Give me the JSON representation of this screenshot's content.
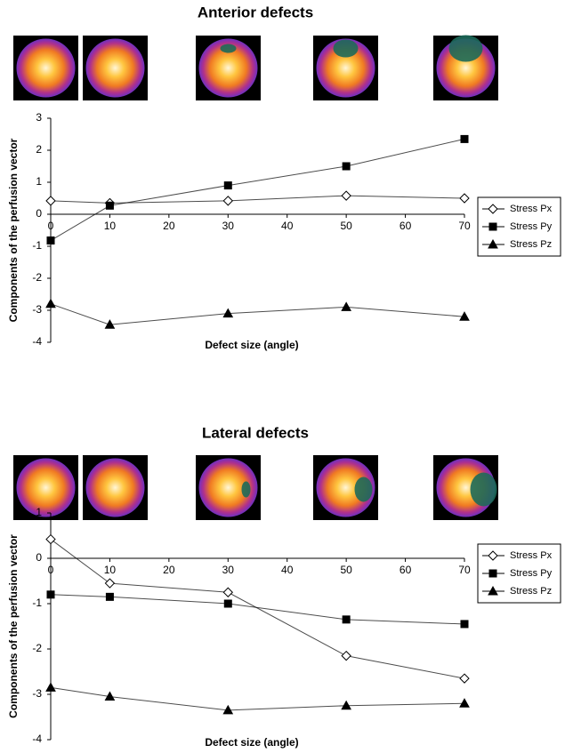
{
  "chart_data": [
    {
      "type": "line",
      "title": "Anterior defects",
      "x_label": "Defect size (angle)",
      "y_label": "Components of the perfusion vector",
      "x": [
        0,
        10,
        30,
        50,
        70
      ],
      "xlim": [
        0,
        70
      ],
      "xticks": [
        0,
        10,
        20,
        30,
        40,
        50,
        60,
        70
      ],
      "ylim": [
        -4,
        3
      ],
      "yticks": [
        -4,
        -3,
        -2,
        -1,
        0,
        1,
        2,
        3
      ],
      "legend": "right",
      "series": [
        {
          "name": "Stress Px",
          "color": "#000000",
          "marker": "diamond-open",
          "values": [
            0.42,
            0.35,
            0.42,
            0.58,
            0.5
          ]
        },
        {
          "name": "Stress Py",
          "color": "#000000",
          "marker": "square",
          "values": [
            -0.82,
            0.27,
            0.9,
            1.5,
            2.35
          ]
        },
        {
          "name": "Stress Pz",
          "color": "#000000",
          "marker": "triangle",
          "values": [
            -2.8,
            -3.45,
            -3.1,
            -2.9,
            -3.2
          ]
        }
      ]
    },
    {
      "type": "line",
      "title": "Lateral defects",
      "x_label": "Defect size (angle)",
      "y_label": "Components of the perfusion vector",
      "x": [
        0,
        10,
        30,
        50,
        70
      ],
      "xlim": [
        0,
        70
      ],
      "xticks": [
        0,
        10,
        20,
        30,
        40,
        50,
        60,
        70
      ],
      "ylim": [
        -4,
        1
      ],
      "yticks": [
        -4,
        -3,
        -2,
        -1,
        0,
        1
      ],
      "legend": "right",
      "series": [
        {
          "name": "Stress Px",
          "color": "#000000",
          "marker": "diamond-open",
          "values": [
            0.42,
            -0.55,
            -0.75,
            -2.15,
            -2.65
          ]
        },
        {
          "name": "Stress Py",
          "color": "#000000",
          "marker": "square",
          "values": [
            -0.8,
            -0.85,
            -1.0,
            -1.35,
            -1.45
          ]
        },
        {
          "name": "Stress Pz",
          "color": "#000000",
          "marker": "triangle",
          "values": [
            -2.85,
            -3.05,
            -3.35,
            -3.25,
            -3.2
          ]
        }
      ]
    }
  ]
}
